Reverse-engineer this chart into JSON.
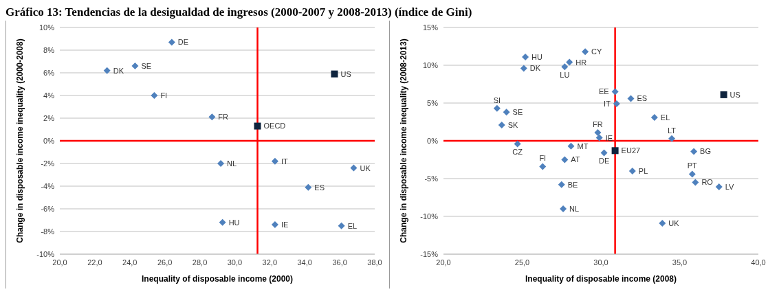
{
  "chart_data": [
    {
      "type": "scatter",
      "title": "Gráfico 13: Tendencias de la desigualdad de ingresos (2000-2007 y 2008-2013) (índice de Gini)",
      "xlabel": "Inequality of disposable income (2000)",
      "ylabel": "Change in disposable income inequality (2000-2008)",
      "xlim": [
        20,
        38
      ],
      "xticks": [
        {
          "value": 20,
          "label": "20,0"
        },
        {
          "value": 22,
          "label": "22,0"
        },
        {
          "value": 24,
          "label": "24,0"
        },
        {
          "value": 26,
          "label": "26,0"
        },
        {
          "value": 28,
          "label": "28,0"
        },
        {
          "value": 30,
          "label": "30,0"
        },
        {
          "value": 32,
          "label": "32,0"
        },
        {
          "value": 34,
          "label": "34,0"
        },
        {
          "value": 36,
          "label": "36,0"
        },
        {
          "value": 38,
          "label": "38,0"
        }
      ],
      "ylim": [
        -10,
        10
      ],
      "yticks": [
        {
          "value": -10,
          "label": "-10%"
        },
        {
          "value": -8,
          "label": "-8%"
        },
        {
          "value": -6,
          "label": "-6%"
        },
        {
          "value": -4,
          "label": "-4%"
        },
        {
          "value": -2,
          "label": "-2%"
        },
        {
          "value": 0,
          "label": "0%"
        },
        {
          "value": 2,
          "label": "2%"
        },
        {
          "value": 4,
          "label": "4%"
        },
        {
          "value": 6,
          "label": "6%"
        },
        {
          "value": 8,
          "label": "8%"
        },
        {
          "value": 10,
          "label": "10%"
        }
      ],
      "grid": "y",
      "legend": false,
      "series": [
        {
          "color": "#4f81bd",
          "marker": "diamond",
          "x": [
            22.7,
            24.3,
            26.4,
            25.4,
            28.7,
            29.2,
            32.3,
            36.8,
            34.2,
            29.3,
            32.3,
            36.1
          ],
          "values": [
            6.2,
            6.6,
            8.7,
            4.0,
            2.1,
            -2.0,
            -1.8,
            -2.4,
            -4.1,
            -7.2,
            -7.4,
            -7.5
          ]
        },
        {
          "color": "#0f243e",
          "marker": "square",
          "x": [
            31.3,
            35.7
          ],
          "values": [
            1.3,
            5.9
          ]
        }
      ],
      "ref_lines": [
        {
          "axis": "x",
          "value": 31.3,
          "color": "#ff0000"
        },
        {
          "axis": "y",
          "value": 0,
          "color": "#ff0000"
        }
      ],
      "annotations": [
        {
          "text": "DK",
          "x": 22.7,
          "y": 6.2
        },
        {
          "text": "SE",
          "x": 24.3,
          "y": 6.6
        },
        {
          "text": "DE",
          "x": 26.4,
          "y": 8.7
        },
        {
          "text": "FI",
          "x": 25.4,
          "y": 4.0
        },
        {
          "text": "FR",
          "x": 28.7,
          "y": 2.1
        },
        {
          "text": "NL",
          "x": 29.2,
          "y": -2.0
        },
        {
          "text": "IT",
          "x": 32.3,
          "y": -1.8
        },
        {
          "text": "UK",
          "x": 36.8,
          "y": -2.4
        },
        {
          "text": "ES",
          "x": 34.2,
          "y": -4.1
        },
        {
          "text": "HU",
          "x": 29.3,
          "y": -7.2
        },
        {
          "text": "IE",
          "x": 32.3,
          "y": -7.4
        },
        {
          "text": "EL",
          "x": 36.1,
          "y": -7.5
        },
        {
          "text": "OECD",
          "x": 31.3,
          "y": 1.3
        },
        {
          "text": "US",
          "x": 35.7,
          "y": 5.9
        }
      ]
    },
    {
      "type": "scatter",
      "xlabel": "Inequality of disposable income (2008)",
      "ylabel": "Change in disposable income inequality (2008-2013)",
      "xlim": [
        20,
        40
      ],
      "xticks": [
        {
          "value": 20,
          "label": "20,0"
        },
        {
          "value": 25,
          "label": "25,0"
        },
        {
          "value": 30,
          "label": "30,0"
        },
        {
          "value": 35,
          "label": "35,0"
        },
        {
          "value": 40,
          "label": "40,0"
        }
      ],
      "ylim": [
        -15,
        15
      ],
      "yticks": [
        {
          "value": -15,
          "label": "-15%"
        },
        {
          "value": -10,
          "label": "-10%"
        },
        {
          "value": -5,
          "label": "-5%"
        },
        {
          "value": 0,
          "label": "0%"
        },
        {
          "value": 5,
          "label": "5%"
        },
        {
          "value": 10,
          "label": "10%"
        },
        {
          "value": 15,
          "label": "15%"
        }
      ],
      "grid": "y",
      "legend": false,
      "series": [
        {
          "color": "#4f81bd",
          "marker": "diamond",
          "x": [
            25.2,
            25.1,
            29.0,
            28.0,
            27.7,
            30.9,
            31.9,
            31.0,
            23.4,
            24.0,
            23.7,
            33.4,
            29.8,
            29.9,
            34.5,
            24.7,
            28.1,
            30.2,
            35.9,
            27.7,
            26.3,
            32.0,
            35.8,
            36.0,
            37.5,
            27.5,
            27.6,
            33.9
          ],
          "values": [
            11.1,
            9.6,
            11.8,
            10.4,
            9.8,
            6.5,
            5.6,
            4.9,
            4.3,
            3.8,
            2.1,
            3.1,
            1.1,
            0.4,
            0.3,
            -0.4,
            -0.7,
            -1.6,
            -1.4,
            -2.5,
            -3.4,
            -4.0,
            -4.4,
            -5.5,
            -6.1,
            -5.8,
            -9.0,
            -10.9
          ]
        },
        {
          "color": "#0f243e",
          "marker": "square",
          "x": [
            37.8,
            30.9
          ],
          "values": [
            6.1,
            -1.3
          ]
        }
      ],
      "ref_lines": [
        {
          "axis": "x",
          "value": 30.9,
          "color": "#ff0000"
        },
        {
          "axis": "y",
          "value": 0,
          "color": "#ff0000"
        }
      ],
      "annotations": [
        {
          "text": "HU",
          "x": 25.2,
          "y": 11.1
        },
        {
          "text": "DK",
          "x": 25.1,
          "y": 9.6
        },
        {
          "text": "CY",
          "x": 29.0,
          "y": 11.8
        },
        {
          "text": "HR",
          "x": 28.0,
          "y": 10.4
        },
        {
          "text": "LU",
          "x": 27.7,
          "y": 9.8
        },
        {
          "text": "EE",
          "x": 30.9,
          "y": 6.5
        },
        {
          "text": "ES",
          "x": 31.9,
          "y": 5.6
        },
        {
          "text": "IT",
          "x": 31.0,
          "y": 4.9
        },
        {
          "text": "SI",
          "x": 23.4,
          "y": 4.3
        },
        {
          "text": "SE",
          "x": 24.0,
          "y": 3.8
        },
        {
          "text": "SK",
          "x": 23.7,
          "y": 2.1
        },
        {
          "text": "EL",
          "x": 33.4,
          "y": 3.1
        },
        {
          "text": "FR",
          "x": 29.8,
          "y": 1.1
        },
        {
          "text": "IE",
          "x": 29.9,
          "y": 0.4
        },
        {
          "text": "LT",
          "x": 34.5,
          "y": 0.3
        },
        {
          "text": "CZ",
          "x": 24.7,
          "y": -0.4
        },
        {
          "text": "MT",
          "x": 28.1,
          "y": -0.7
        },
        {
          "text": "DE",
          "x": 30.2,
          "y": -1.6
        },
        {
          "text": "BG",
          "x": 35.9,
          "y": -1.4
        },
        {
          "text": "AT",
          "x": 27.7,
          "y": -2.5
        },
        {
          "text": "FI",
          "x": 26.3,
          "y": -3.4
        },
        {
          "text": "PL",
          "x": 32.0,
          "y": -4.0
        },
        {
          "text": "PT",
          "x": 35.8,
          "y": -4.4
        },
        {
          "text": "RO",
          "x": 36.0,
          "y": -5.5
        },
        {
          "text": "LV",
          "x": 37.5,
          "y": -6.1
        },
        {
          "text": "BE",
          "x": 27.5,
          "y": -5.8
        },
        {
          "text": "NL",
          "x": 27.6,
          "y": -9.0
        },
        {
          "text": "UK",
          "x": 33.9,
          "y": -10.9
        },
        {
          "text": "US",
          "x": 37.8,
          "y": 6.1
        },
        {
          "text": "EU27",
          "x": 30.9,
          "y": -1.3
        }
      ]
    }
  ]
}
